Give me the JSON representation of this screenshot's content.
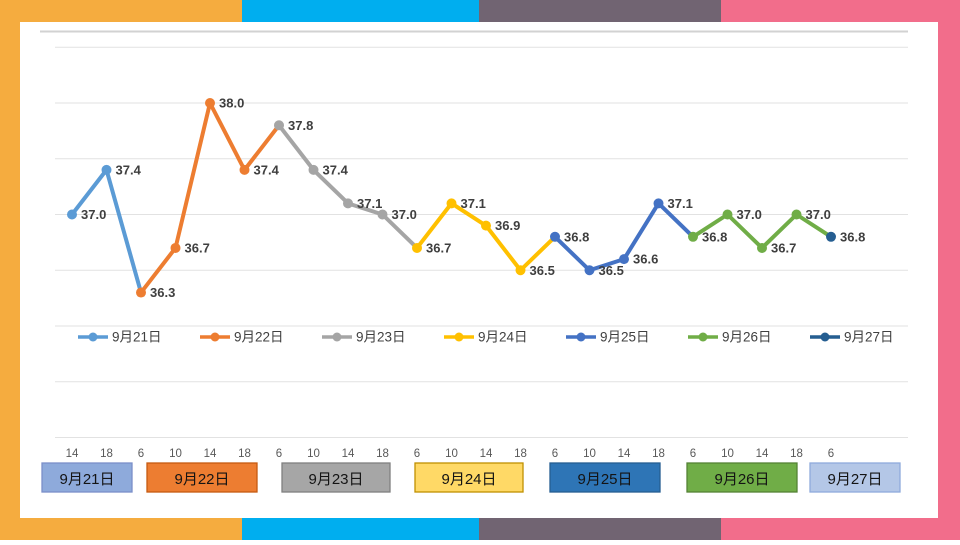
{
  "frame": {
    "stripe_colors": [
      "#F5AC3F",
      "#00AEEF",
      "#716472",
      "#F26D8B"
    ]
  },
  "panel": {
    "background": "#FFFFFF",
    "top_line_color": "#D2D2D2",
    "gridline_color": "#E2E2E2",
    "data_label_color": "#3F3F3F",
    "tick_label_color": "#595959",
    "legend_text_color": "#404040",
    "day_box_text_color": "#141414"
  },
  "chart_data": {
    "type": "line",
    "title": "",
    "xlabel": "",
    "ylabel": "",
    "ylim": [
      35.0,
      38.5
    ],
    "gridline_step": 0.5,
    "grid": true,
    "y_axis_labels_visible": false,
    "legend_position": "center-overlay",
    "data_labels": true,
    "x": [
      "14",
      "18",
      "6",
      "10",
      "14",
      "18",
      "6",
      "10",
      "14",
      "18",
      "6",
      "10",
      "14",
      "18",
      "6",
      "10",
      "14",
      "18",
      "6",
      "10",
      "14",
      "18",
      "6"
    ],
    "series": [
      {
        "name": "9月21日",
        "color": "#5B9BD5",
        "x_labels": [
          "14",
          "18"
        ],
        "values": [
          37.0,
          37.4
        ]
      },
      {
        "name": "9月22日",
        "color": "#ED7D31",
        "x_labels": [
          "6",
          "10",
          "14",
          "18"
        ],
        "values": [
          36.3,
          36.7,
          38.0,
          37.4
        ]
      },
      {
        "name": "9月23日",
        "color": "#A5A5A5",
        "x_labels": [
          "6",
          "10",
          "14",
          "18"
        ],
        "values": [
          37.8,
          37.4,
          37.1,
          37.0
        ]
      },
      {
        "name": "9月24日",
        "color": "#FFC000",
        "x_labels": [
          "6",
          "10",
          "14",
          "18"
        ],
        "values": [
          36.7,
          37.1,
          36.9,
          36.5
        ]
      },
      {
        "name": "9月25日",
        "color": "#4472C4",
        "x_labels": [
          "6",
          "10",
          "14",
          "18"
        ],
        "values": [
          36.8,
          36.5,
          36.6,
          37.1
        ]
      },
      {
        "name": "9月26日",
        "color": "#70AD47",
        "x_labels": [
          "6",
          "10",
          "14",
          "18"
        ],
        "values": [
          36.8,
          37.0,
          36.7,
          37.0
        ]
      },
      {
        "name": "9月27日",
        "color": "#255E91",
        "x_labels": [
          "6"
        ],
        "values": [
          36.8
        ]
      }
    ],
    "day_axis_boxes": [
      {
        "label": "9月21日",
        "fill": "#8EAADB",
        "border": "#7B8FC9"
      },
      {
        "label": "9月22日",
        "fill": "#ED7D31",
        "border": "#C55A11"
      },
      {
        "label": "9月23日",
        "fill": "#A6A6A6",
        "border": "#808080"
      },
      {
        "label": "9月24日",
        "fill": "#FFD966",
        "border": "#BF9000"
      },
      {
        "label": "9月25日",
        "fill": "#2E75B6",
        "border": "#255E91"
      },
      {
        "label": "9月26日",
        "fill": "#70AD47",
        "border": "#548235"
      },
      {
        "label": "9月27日",
        "fill": "#B4C7E7",
        "border": "#8FAADC"
      }
    ]
  }
}
